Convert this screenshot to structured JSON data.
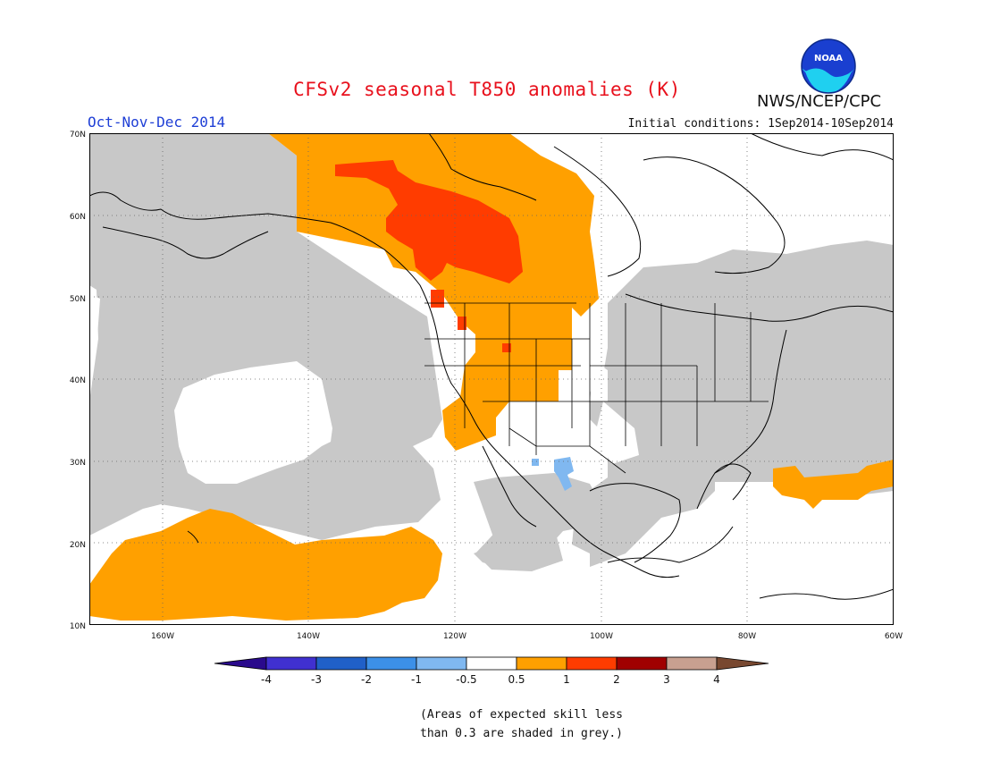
{
  "title": "CFSv2 seasonal T850 anomalies (K)",
  "period": "Oct-Nov-Dec 2014",
  "initial_conditions": "Initial conditions: 1Sep2014-10Sep2014",
  "agency": "NWS/NCEP/CPC",
  "logo_text": "NOAA",
  "skill_note_line1": "(Areas of expected skill less",
  "skill_note_line2": "than 0.3 are shaded in grey.)",
  "map": {
    "lon_range": [
      -170,
      -60
    ],
    "lat_range": [
      10,
      70
    ],
    "lat_labels": [
      "70N",
      "60N",
      "50N",
      "40N",
      "30N",
      "20N",
      "10N"
    ],
    "lon_labels": [
      "160W",
      "140W",
      "120W",
      "100W",
      "80W",
      "60W"
    ],
    "colors": {
      "grey_low_skill": "#c8c8c8",
      "anomaly_0p5_to_1": "#ffa000",
      "anomaly_1_to_2": "#ff3c00",
      "anomaly_neg_0p5_to_neg_1": "#80b8f0"
    }
  },
  "colorbar": {
    "labels": [
      "-4",
      "-3",
      "-2",
      "-1",
      "-0.5",
      "0.5",
      "1",
      "2",
      "3",
      "4"
    ],
    "colors": [
      "#2a0a8c",
      "#4030d0",
      "#2060c8",
      "#3c90e8",
      "#80b8f0",
      "#ffffff",
      "#ffa000",
      "#ff3c00",
      "#a00000",
      "#c8a090",
      "#784830"
    ]
  }
}
